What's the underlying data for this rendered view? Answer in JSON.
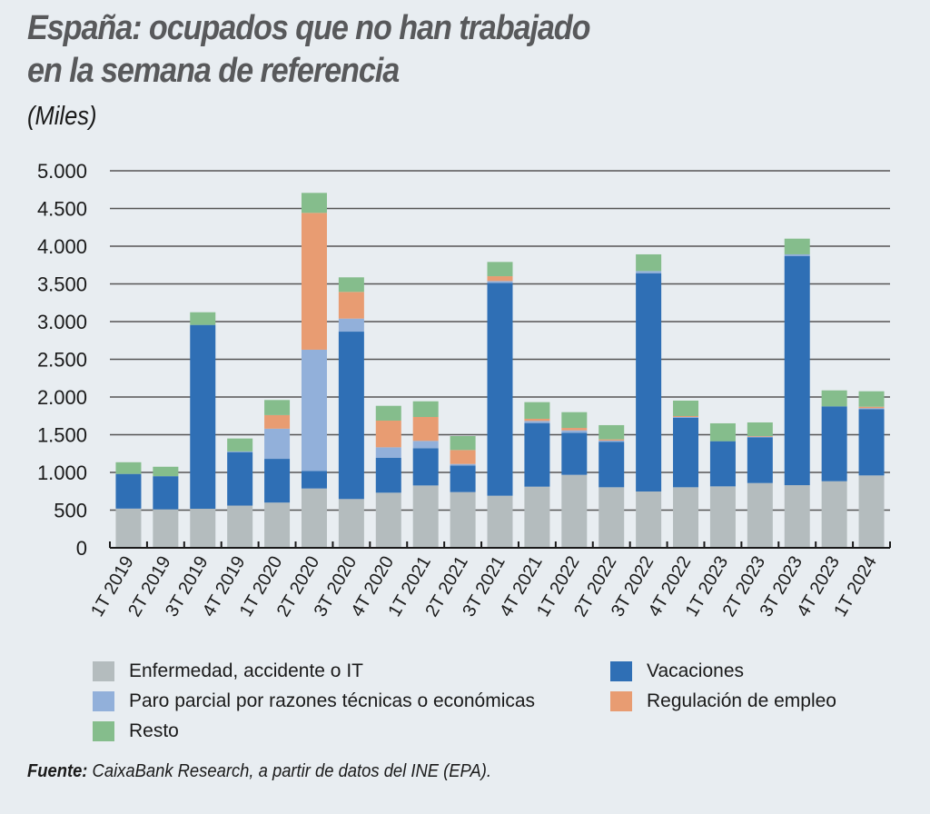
{
  "header": {
    "title_line1": "España: ocupados que no han trabajado",
    "title_line2": "en la semana de referencia",
    "subtitle": "(Miles)"
  },
  "source": {
    "label": "Fuente:",
    "text": " CaixaBank Research, a partir de datos del INE (EPA)."
  },
  "chart_data": {
    "type": "bar",
    "stacked": true,
    "title": "España: ocupados que no han trabajado en la semana de referencia",
    "subtitle": "(Miles)",
    "xlabel": "",
    "ylabel": "",
    "ylim": [
      0,
      5000
    ],
    "yticks": [
      0,
      500,
      1000,
      1500,
      2000,
      2500,
      3000,
      3500,
      4000,
      4500,
      5000
    ],
    "ytick_labels": [
      "0",
      "500",
      "1.000",
      "1.500",
      "2.000",
      "2.500",
      "3.000",
      "3.500",
      "4.000",
      "4.500",
      "5.000"
    ],
    "grid": "horizontal",
    "legend_position": "bottom",
    "categories": [
      "1T 2019",
      "2T 2019",
      "3T 2019",
      "4T 2019",
      "1T 2020",
      "2T 2020",
      "3T 2020",
      "4T 2020",
      "1T 2021",
      "2T 2021",
      "3T 2021",
      "4T 2021",
      "1T 2022",
      "2T 2022",
      "3T 2022",
      "4T 2022",
      "1T 2023",
      "2T 2023",
      "3T 2023",
      "4T 2023",
      "1T 2024"
    ],
    "series": [
      {
        "name": "Enfermedad, accidente o IT",
        "color": "#b4bcbe",
        "values": [
          520,
          510,
          518,
          560,
          600,
          787,
          647,
          731,
          827,
          739,
          691,
          811,
          968,
          803,
          747,
          803,
          815,
          859,
          831,
          883,
          960
        ]
      },
      {
        "name": "Vacaciones",
        "color": "#2f6fb5",
        "values": [
          460,
          440,
          2438,
          709,
          580,
          233,
          2220,
          462,
          494,
          353,
          2823,
          844,
          558,
          603,
          2895,
          920,
          599,
          607,
          3040,
          993,
          880
        ]
      },
      {
        "name": "Paro parcial por razones técnicas o económicas",
        "color": "#92b0da",
        "values": [
          0,
          0,
          0,
          10,
          400,
          1607,
          173,
          140,
          97,
          20,
          24,
          28,
          32,
          16,
          29,
          12,
          0,
          8,
          21,
          0,
          12
        ]
      },
      {
        "name": "Regulación de empleo",
        "color": "#e89c72",
        "values": [
          0,
          0,
          0,
          0,
          180,
          1815,
          354,
          354,
          317,
          185,
          64,
          28,
          32,
          16,
          0,
          12,
          0,
          8,
          0,
          0,
          19
        ]
      },
      {
        "name": "Resto",
        "color": "#85bd8c",
        "values": [
          155,
          125,
          168,
          171,
          200,
          265,
          193,
          196,
          208,
          185,
          189,
          221,
          209,
          189,
          221,
          205,
          237,
          181,
          208,
          212,
          205
        ]
      }
    ]
  },
  "legend": {
    "left": [
      {
        "label": "Enfermedad, accidente o IT",
        "color": "#b4bcbe"
      },
      {
        "label": "Paro parcial por razones técnicas o económicas",
        "color": "#92b0da"
      },
      {
        "label": "Resto",
        "color": "#85bd8c"
      }
    ],
    "right": [
      {
        "label": "Vacaciones",
        "color": "#2f6fb5"
      },
      {
        "label": "Regulación de empleo",
        "color": "#e89c72"
      }
    ]
  }
}
